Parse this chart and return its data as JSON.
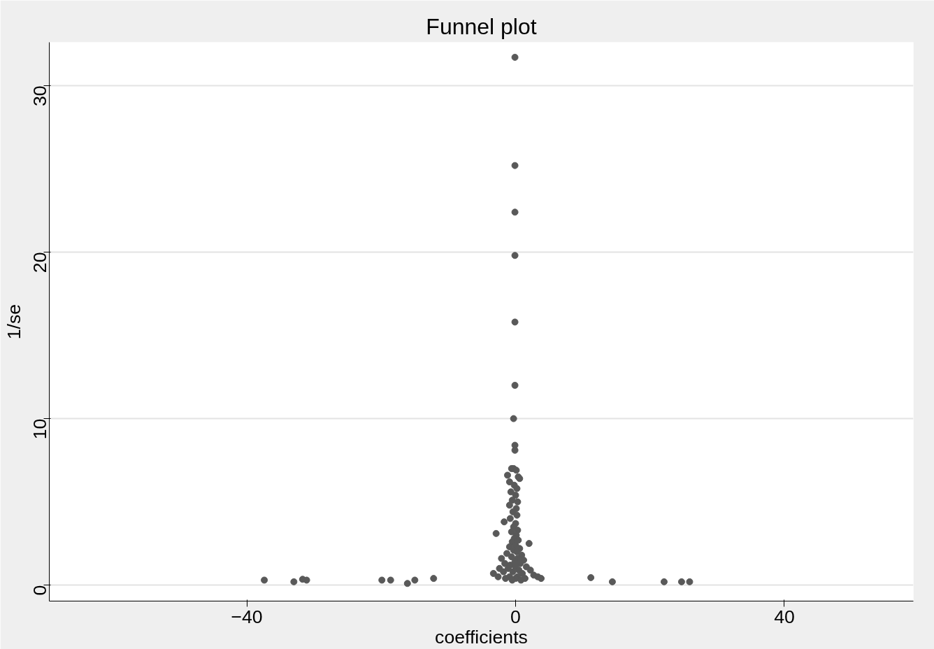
{
  "chart_data": {
    "type": "scatter",
    "title": "Funnel plot",
    "xlabel": "coefficients",
    "ylabel": "1/se",
    "xlim": [
      -69.4,
      59.2
    ],
    "ylim": [
      -0.96,
      32.6
    ],
    "xticks": [
      -40,
      0,
      40
    ],
    "yticks": [
      0,
      10,
      20,
      30
    ],
    "grid": "y",
    "marker": "circle",
    "series": [
      {
        "color": "#595959",
        "x": [
          -37.4,
          -33.0,
          -31.7,
          -31.1,
          -19.9,
          -18.6,
          -16.1,
          -15.0,
          -12.2,
          11.2,
          14.4,
          22.1,
          24.7,
          25.9,
          -0.1,
          -0.1,
          -0.1,
          -0.1,
          -0.1,
          -0.1,
          -0.3,
          -0.1,
          -0.1,
          -0.6,
          -0.3,
          0.1,
          -1.2,
          0.4,
          0.6,
          -0.9,
          -0.2,
          0.2,
          -0.7,
          0.0,
          -0.5,
          0.3,
          -0.9,
          0.1,
          -0.4,
          0.2,
          -0.8,
          -1.7,
          0.0,
          -0.3,
          0.3,
          -0.6,
          -2.9,
          0.1,
          -0.2,
          0.4,
          -0.5,
          2.0,
          0.0,
          -0.9,
          0.6,
          -0.3,
          0.2,
          -1.3,
          0.9,
          -0.6,
          0.3,
          -2.1,
          1.2,
          -0.1,
          -1.6,
          0.7,
          -0.8,
          1.6,
          0.0,
          -2.4,
          -1.1,
          0.5,
          2.2,
          -3.3,
          -1.8,
          -0.4,
          1.0,
          2.7,
          -2.6,
          -0.9,
          0.3,
          3.3,
          -1.5,
          0.0,
          1.4,
          3.8,
          -0.5,
          0.8
        ],
        "values": [
          0.3,
          0.2,
          0.35,
          0.3,
          0.3,
          0.3,
          0.1,
          0.3,
          0.4,
          0.45,
          0.2,
          0.2,
          0.2,
          0.2,
          31.7,
          25.2,
          22.4,
          19.8,
          15.8,
          12.0,
          10.0,
          8.4,
          8.1,
          7.0,
          7.0,
          6.9,
          6.6,
          6.5,
          6.4,
          6.2,
          6.0,
          5.8,
          5.6,
          5.4,
          5.1,
          5.0,
          4.8,
          4.6,
          4.4,
          4.2,
          4.0,
          3.8,
          3.7,
          3.5,
          3.3,
          3.2,
          3.1,
          3.0,
          2.8,
          2.7,
          2.6,
          2.5,
          2.4,
          2.3,
          2.2,
          2.1,
          2.0,
          1.9,
          1.8,
          1.7,
          1.6,
          1.6,
          1.5,
          1.4,
          1.3,
          1.3,
          1.2,
          1.1,
          1.1,
          1.0,
          1.0,
          0.9,
          0.9,
          0.7,
          0.8,
          0.8,
          0.7,
          0.6,
          0.5,
          0.5,
          0.5,
          0.5,
          0.4,
          0.4,
          0.4,
          0.4,
          0.3,
          0.3
        ]
      }
    ]
  }
}
